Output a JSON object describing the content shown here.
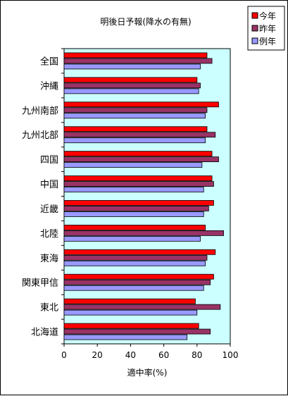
{
  "chart_data": {
    "type": "bar",
    "orientation": "horizontal",
    "title": "明後日予報(降水の有無)",
    "xlabel": "適中率(%)",
    "ylabel": "",
    "xlim": [
      0,
      100
    ],
    "xticks": [
      0,
      20,
      40,
      60,
      80,
      100
    ],
    "grid": false,
    "legend_position": "top-right",
    "categories": [
      "全国",
      "沖縄",
      "九州南部",
      "九州北部",
      "四国",
      "中国",
      "近畿",
      "北陸",
      "東海",
      "関東甲信",
      "東北",
      "北海道"
    ],
    "series": [
      {
        "name": "今年",
        "color": "#ff0000",
        "values": [
          86,
          80,
          93,
          86,
          89,
          89,
          90,
          85,
          91,
          90,
          79,
          81
        ]
      },
      {
        "name": "昨年",
        "color": "#993366",
        "values": [
          89,
          82,
          86,
          91,
          93,
          90,
          87,
          96,
          86,
          88,
          94,
          88
        ]
      },
      {
        "name": "例年",
        "color": "#9999ff",
        "values": [
          82,
          81,
          85,
          85,
          83,
          84,
          84,
          82,
          85,
          84,
          80,
          74
        ]
      }
    ],
    "plot_background": "#ccffff"
  }
}
